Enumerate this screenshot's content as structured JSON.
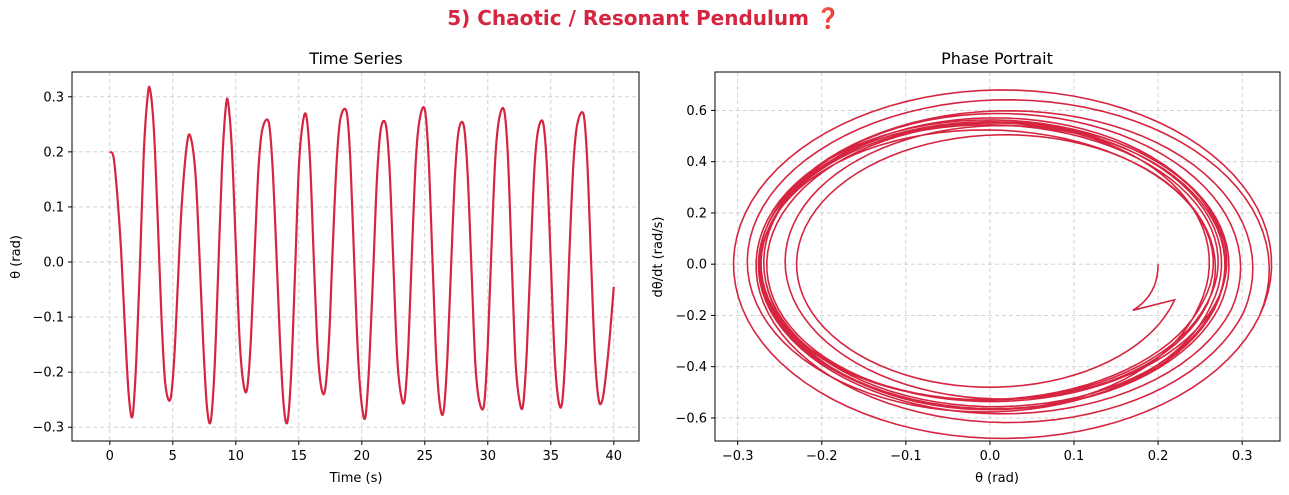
{
  "title": "5) Chaotic / Resonant Pendulum ❓",
  "colors": {
    "title": "#d62541",
    "series": "#d62541",
    "grid": "#cccccc"
  },
  "chart_data": [
    {
      "type": "line",
      "title": "Time Series",
      "xlabel": "Time (s)",
      "ylabel": "θ (rad)",
      "xlim": [
        -3,
        42
      ],
      "ylim": [
        -0.325,
        0.345
      ],
      "xticks": [
        0,
        5,
        10,
        15,
        20,
        25,
        30,
        35,
        40
      ],
      "yticks": [
        -0.3,
        -0.2,
        -0.1,
        0.0,
        0.1,
        0.2,
        0.3
      ],
      "xtick_labels": [
        "0",
        "5",
        "10",
        "15",
        "20",
        "25",
        "30",
        "35",
        "40"
      ],
      "ytick_labels": [
        "−0.3",
        "−0.2",
        "−0.1",
        "0.0",
        "0.1",
        "0.2",
        "0.3"
      ],
      "grid": true,
      "series": [
        {
          "points": [
            [
              0.0,
              0.2
            ],
            [
              0.3,
              0.19
            ],
            [
              0.6,
              0.12
            ],
            [
              0.9,
              0.02
            ],
            [
              1.2,
              -0.12
            ],
            [
              1.5,
              -0.24
            ],
            [
              1.8,
              -0.28
            ],
            [
              2.1,
              -0.18
            ],
            [
              2.4,
              0.0
            ],
            [
              2.7,
              0.2
            ],
            [
              3.0,
              0.3
            ],
            [
              3.2,
              0.313
            ],
            [
              3.5,
              0.24
            ],
            [
              3.8,
              0.08
            ],
            [
              4.1,
              -0.1
            ],
            [
              4.4,
              -0.22
            ],
            [
              4.8,
              -0.25
            ],
            [
              5.1,
              -0.18
            ],
            [
              5.4,
              -0.04
            ],
            [
              5.7,
              0.1
            ],
            [
              6.1,
              0.21
            ],
            [
              6.4,
              0.228
            ],
            [
              6.8,
              0.16
            ],
            [
              7.1,
              0.02
            ],
            [
              7.4,
              -0.14
            ],
            [
              7.7,
              -0.26
            ],
            [
              8.0,
              -0.29
            ],
            [
              8.3,
              -0.2
            ],
            [
              8.6,
              -0.02
            ],
            [
              8.9,
              0.17
            ],
            [
              9.2,
              0.28
            ],
            [
              9.4,
              0.288
            ],
            [
              9.7,
              0.2
            ],
            [
              10.0,
              0.03
            ],
            [
              10.3,
              -0.14
            ],
            [
              10.6,
              -0.22
            ],
            [
              10.9,
              -0.23
            ],
            [
              11.2,
              -0.14
            ],
            [
              11.5,
              0.02
            ],
            [
              11.8,
              0.17
            ],
            [
              12.1,
              0.24
            ],
            [
              12.6,
              0.255
            ],
            [
              12.9,
              0.18
            ],
            [
              13.2,
              0.03
            ],
            [
              13.5,
              -0.14
            ],
            [
              13.8,
              -0.26
            ],
            [
              14.1,
              -0.29
            ],
            [
              14.4,
              -0.2
            ],
            [
              14.7,
              -0.02
            ],
            [
              15.0,
              0.17
            ],
            [
              15.3,
              0.25
            ],
            [
              15.6,
              0.265
            ],
            [
              15.9,
              0.18
            ],
            [
              16.2,
              0.0
            ],
            [
              16.5,
              -0.16
            ],
            [
              16.8,
              -0.23
            ],
            [
              17.1,
              -0.23
            ],
            [
              17.4,
              -0.14
            ],
            [
              17.7,
              0.03
            ],
            [
              18.0,
              0.18
            ],
            [
              18.3,
              0.26
            ],
            [
              18.8,
              0.272
            ],
            [
              19.1,
              0.18
            ],
            [
              19.4,
              0.0
            ],
            [
              19.7,
              -0.17
            ],
            [
              20.0,
              -0.26
            ],
            [
              20.3,
              -0.28
            ],
            [
              20.6,
              -0.18
            ],
            [
              20.9,
              -0.02
            ],
            [
              21.2,
              0.15
            ],
            [
              21.5,
              0.24
            ],
            [
              21.9,
              0.25
            ],
            [
              22.2,
              0.17
            ],
            [
              22.5,
              0.0
            ],
            [
              22.8,
              -0.17
            ],
            [
              23.1,
              -0.24
            ],
            [
              23.4,
              -0.25
            ],
            [
              23.7,
              -0.15
            ],
            [
              24.0,
              0.03
            ],
            [
              24.3,
              0.19
            ],
            [
              24.6,
              0.26
            ],
            [
              25.0,
              0.277
            ],
            [
              25.3,
              0.19
            ],
            [
              25.6,
              0.01
            ],
            [
              25.9,
              -0.17
            ],
            [
              26.2,
              -0.26
            ],
            [
              26.5,
              -0.27
            ],
            [
              26.8,
              -0.17
            ],
            [
              27.1,
              0.0
            ],
            [
              27.4,
              0.16
            ],
            [
              27.7,
              0.24
            ],
            [
              28.1,
              0.247
            ],
            [
              28.4,
              0.16
            ],
            [
              28.7,
              -0.01
            ],
            [
              29.0,
              -0.18
            ],
            [
              29.3,
              -0.25
            ],
            [
              29.7,
              -0.26
            ],
            [
              30.0,
              -0.15
            ],
            [
              30.3,
              0.03
            ],
            [
              30.6,
              0.19
            ],
            [
              30.9,
              0.26
            ],
            [
              31.3,
              0.275
            ],
            [
              31.6,
              0.19
            ],
            [
              31.9,
              0.0
            ],
            [
              32.2,
              -0.18
            ],
            [
              32.5,
              -0.25
            ],
            [
              32.8,
              -0.26
            ],
            [
              33.1,
              -0.16
            ],
            [
              33.4,
              0.01
            ],
            [
              33.7,
              0.17
            ],
            [
              34.0,
              0.24
            ],
            [
              34.4,
              0.252
            ],
            [
              34.7,
              0.17
            ],
            [
              35.0,
              0.0
            ],
            [
              35.3,
              -0.17
            ],
            [
              35.6,
              -0.25
            ],
            [
              35.9,
              -0.255
            ],
            [
              36.2,
              -0.15
            ],
            [
              36.5,
              0.03
            ],
            [
              36.8,
              0.18
            ],
            [
              37.1,
              0.25
            ],
            [
              37.6,
              0.268
            ],
            [
              37.9,
              0.18
            ],
            [
              38.2,
              0.0
            ],
            [
              38.5,
              -0.17
            ],
            [
              38.8,
              -0.25
            ],
            [
              39.1,
              -0.25
            ],
            [
              39.4,
              -0.2
            ],
            [
              39.7,
              -0.13
            ],
            [
              40.0,
              -0.045
            ]
          ]
        }
      ]
    },
    {
      "type": "line",
      "title": "Phase Portrait",
      "xlabel": "θ (rad)",
      "ylabel": "dθ/dt (rad/s)",
      "xlim": [
        -0.327,
        0.345
      ],
      "ylim": [
        -0.69,
        0.75
      ],
      "xticks": [
        -0.3,
        -0.2,
        -0.1,
        0.0,
        0.1,
        0.2,
        0.3
      ],
      "yticks": [
        -0.6,
        -0.4,
        -0.2,
        0.0,
        0.2,
        0.4,
        0.6
      ],
      "xtick_labels": [
        "−0.3",
        "−0.2",
        "−0.1",
        "0.0",
        "0.1",
        "0.2",
        "0.3"
      ],
      "ytick_labels": [
        "−0.6",
        "−0.4",
        "−0.2",
        "0.0",
        "0.2",
        "0.4",
        "0.6"
      ],
      "grid": true,
      "loops": [
        {
          "amp_theta": 0.23,
          "amp_vel": 0.47,
          "center": 0.0
        },
        {
          "amp_theta": 0.25,
          "amp_vel": 0.52,
          "center": 0.02
        },
        {
          "amp_theta": 0.27,
          "amp_vel": 0.55,
          "center": 0.01
        },
        {
          "amp_theta": 0.28,
          "amp_vel": 0.58,
          "center": 0.0
        },
        {
          "amp_theta": 0.265,
          "amp_vel": 0.5,
          "center": 0.0
        },
        {
          "amp_theta": 0.3,
          "amp_vel": 0.64,
          "center": 0.015
        },
        {
          "amp_theta": 0.275,
          "amp_vel": 0.53,
          "center": 0.005
        },
        {
          "amp_theta": 0.26,
          "amp_vel": 0.56,
          "center": 0.0
        },
        {
          "amp_theta": 0.29,
          "amp_vel": 0.6,
          "center": 0.01
        },
        {
          "amp_theta": 0.27,
          "amp_vel": 0.52,
          "center": 0.0
        },
        {
          "amp_theta": 0.28,
          "amp_vel": 0.57,
          "center": 0.005
        },
        {
          "amp_theta": 0.275,
          "amp_vel": 0.55,
          "center": 0.0
        },
        {
          "amp_theta": 0.32,
          "amp_vel": 0.68,
          "center": 0.015
        }
      ]
    }
  ]
}
